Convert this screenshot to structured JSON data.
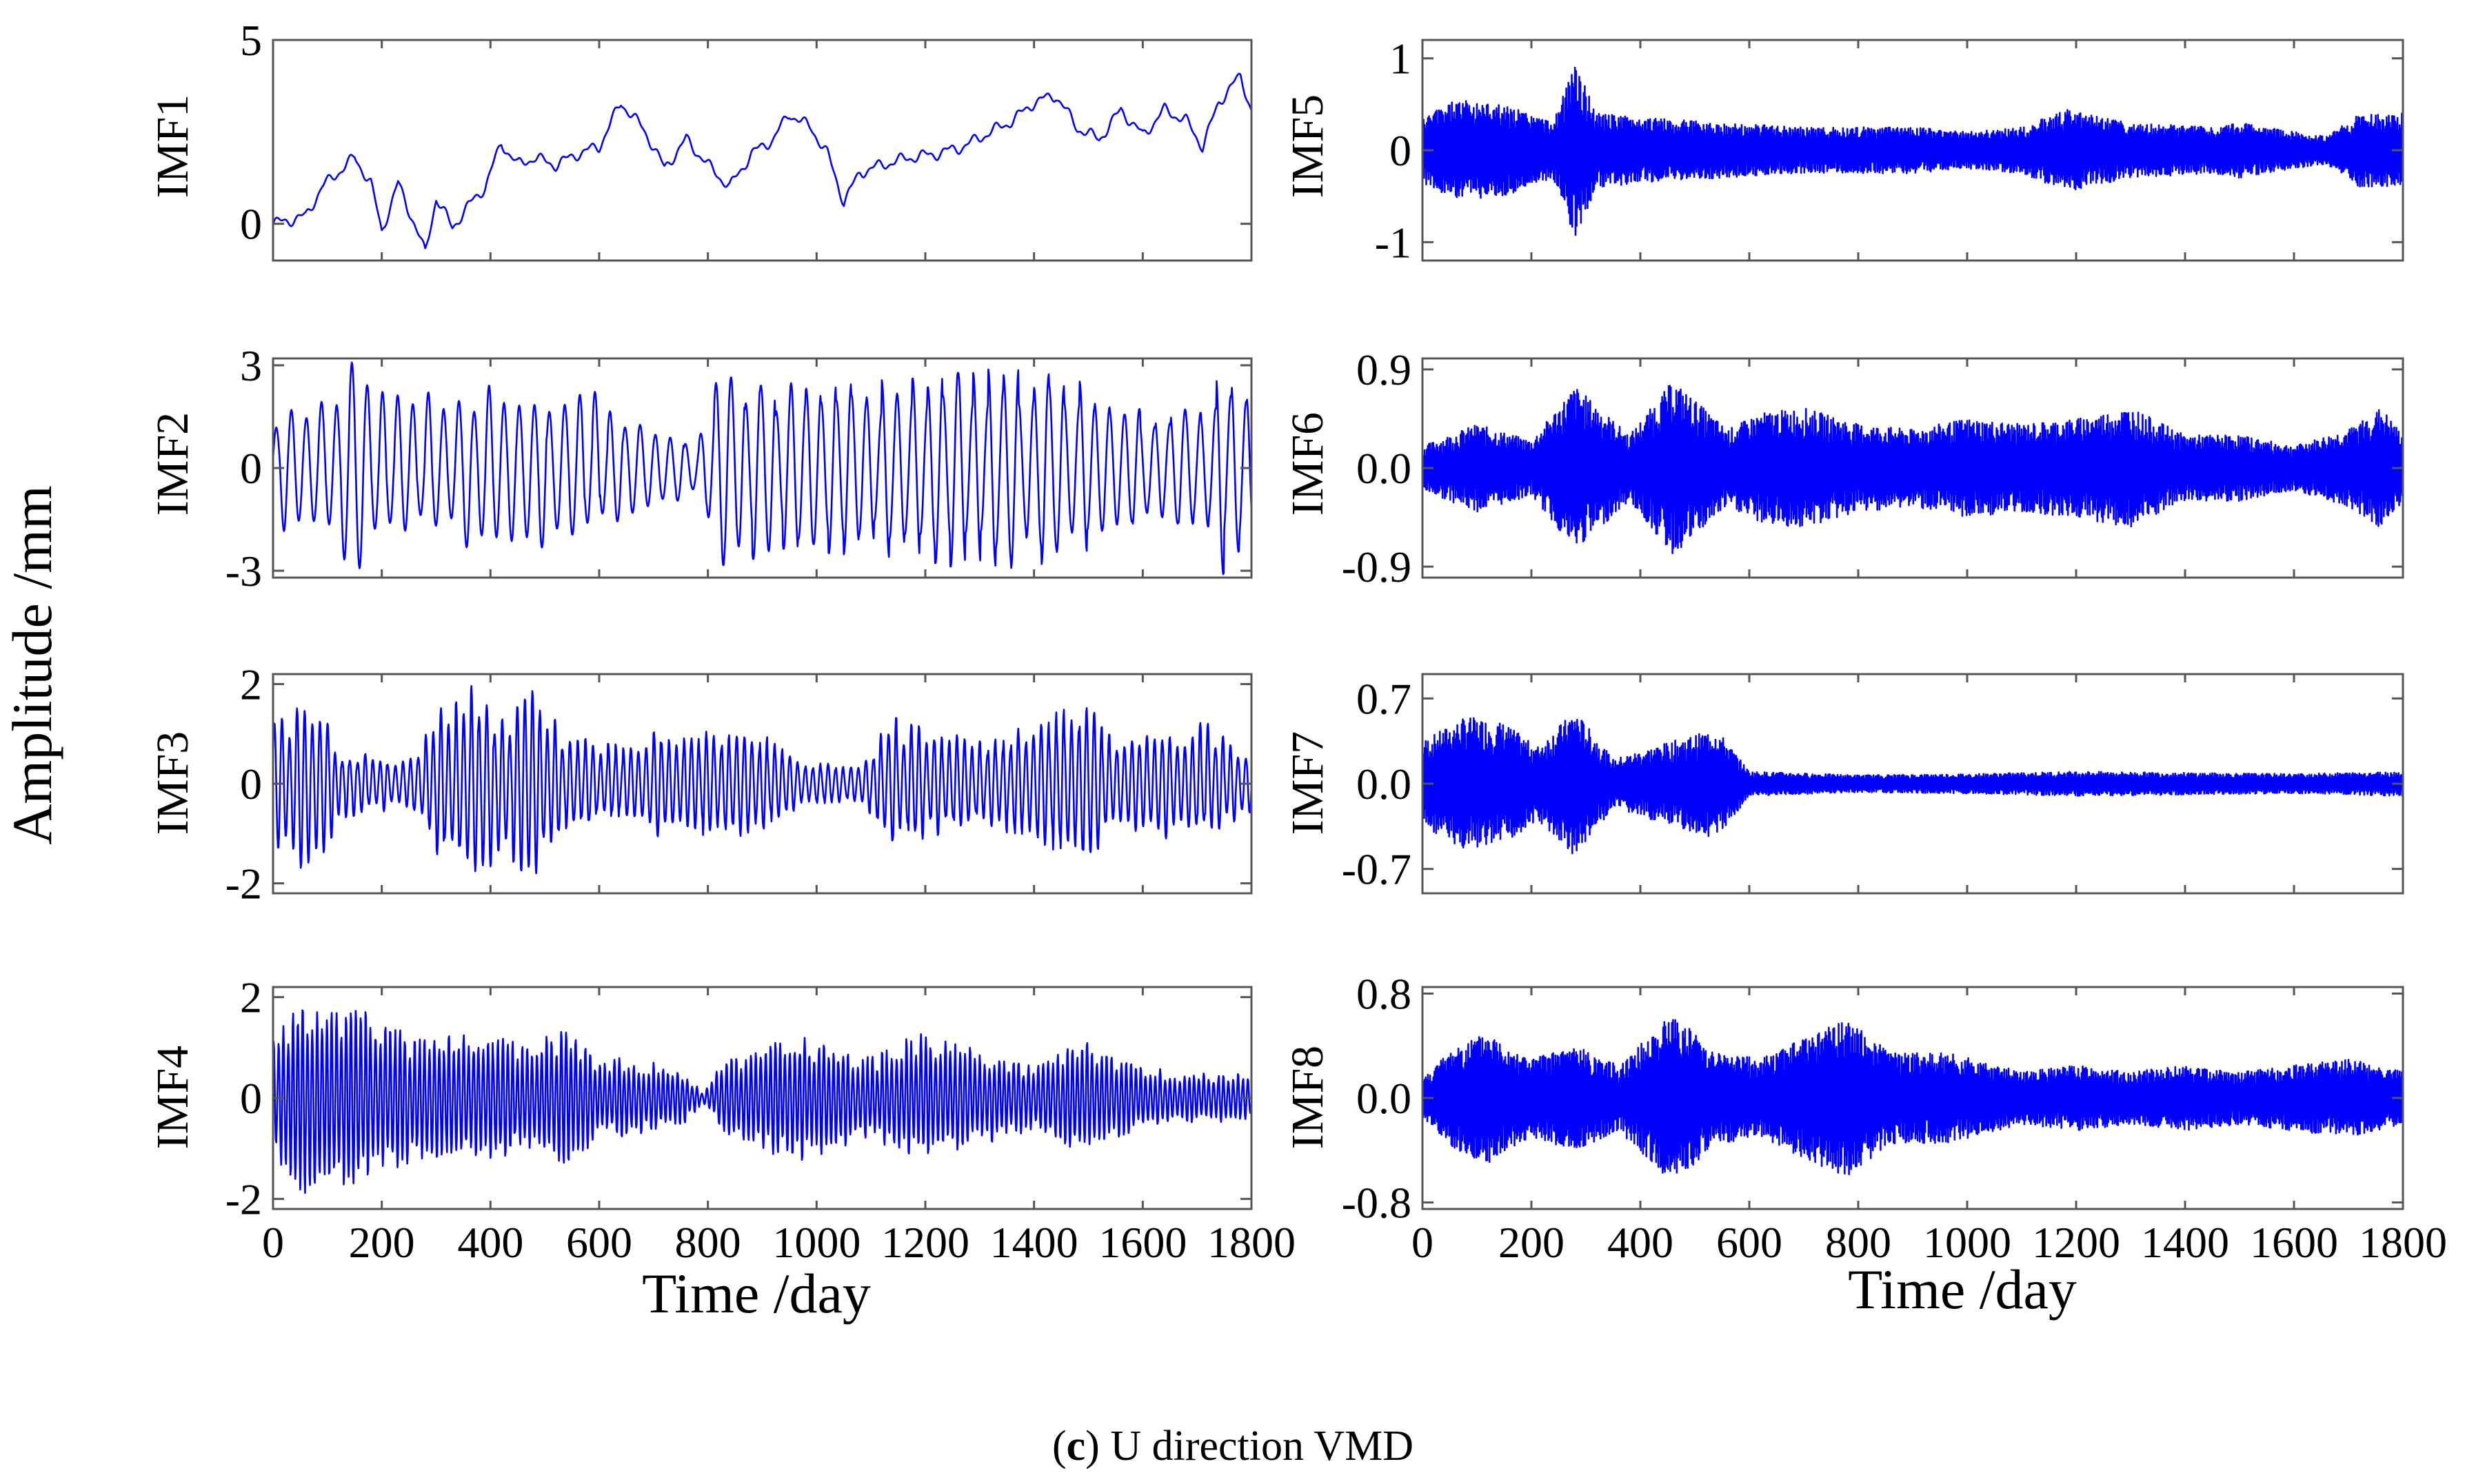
{
  "caption": {
    "prefix": "(",
    "letter": "c",
    "suffix": ") U direction VMD"
  },
  "shared_ylabel": "Amplitude /mm",
  "colors": {
    "series": "#0000ff",
    "frame": "#555555",
    "text": "#000000"
  },
  "chart_data": [
    {
      "type": "line",
      "name": "IMF1",
      "ylabel": "IMF1",
      "xlim": [
        0,
        1800
      ],
      "ylim": [
        -1,
        5
      ],
      "yticks": [
        0,
        5
      ],
      "ytick_labels": [
        "0",
        "5"
      ],
      "xticks": [],
      "xtick_labels": [],
      "xlabel": "",
      "color": "#0000ff",
      "signal": {
        "kind": "trend",
        "points": [
          [
            0,
            0.0
          ],
          [
            30,
            0.1
          ],
          [
            60,
            0.2
          ],
          [
            90,
            1.0
          ],
          [
            120,
            1.4
          ],
          [
            150,
            1.8
          ],
          [
            180,
            1.1
          ],
          [
            200,
            -0.2
          ],
          [
            230,
            1.1
          ],
          [
            260,
            0.0
          ],
          [
            280,
            -0.8
          ],
          [
            300,
            0.7
          ],
          [
            330,
            -0.1
          ],
          [
            360,
            0.5
          ],
          [
            390,
            1.0
          ],
          [
            420,
            2.2
          ],
          [
            450,
            1.6
          ],
          [
            480,
            1.8
          ],
          [
            520,
            1.6
          ],
          [
            560,
            1.9
          ],
          [
            600,
            2.1
          ],
          [
            640,
            3.3
          ],
          [
            680,
            2.6
          ],
          [
            700,
            2.1
          ],
          [
            720,
            1.5
          ],
          [
            760,
            2.3
          ],
          [
            800,
            1.6
          ],
          [
            840,
            1.0
          ],
          [
            880,
            1.9
          ],
          [
            920,
            2.3
          ],
          [
            950,
            3.0
          ],
          [
            990,
            2.6
          ],
          [
            1020,
            1.9
          ],
          [
            1050,
            0.6
          ],
          [
            1080,
            1.4
          ],
          [
            1120,
            1.6
          ],
          [
            1170,
            1.8
          ],
          [
            1220,
            1.9
          ],
          [
            1270,
            2.1
          ],
          [
            1320,
            2.5
          ],
          [
            1360,
            2.8
          ],
          [
            1400,
            3.3
          ],
          [
            1440,
            3.5
          ],
          [
            1480,
            2.6
          ],
          [
            1520,
            2.3
          ],
          [
            1560,
            3.1
          ],
          [
            1600,
            2.4
          ],
          [
            1640,
            3.1
          ],
          [
            1680,
            2.8
          ],
          [
            1710,
            2.1
          ],
          [
            1740,
            3.3
          ],
          [
            1760,
            3.7
          ],
          [
            1780,
            4.0
          ],
          [
            1800,
            3.1
          ]
        ]
      }
    },
    {
      "type": "line",
      "name": "IMF2",
      "ylabel": "IMF2",
      "xlim": [
        0,
        1800
      ],
      "ylim": [
        -3.2,
        3.2
      ],
      "yticks": [
        -3,
        0,
        3
      ],
      "ytick_labels": [
        "-3",
        "0",
        "3"
      ],
      "xticks": [],
      "xtick_labels": [],
      "xlabel": "",
      "color": "#0000ff",
      "signal": {
        "kind": "oscillation",
        "period": 28,
        "seed": 2,
        "env": [
          [
            0,
            1.4
          ],
          [
            80,
            2.0
          ],
          [
            150,
            2.6
          ],
          [
            250,
            1.8
          ],
          [
            400,
            2.0
          ],
          [
            600,
            1.8
          ],
          [
            700,
            1.0
          ],
          [
            780,
            0.8
          ],
          [
            820,
            2.6
          ],
          [
            900,
            2.2
          ],
          [
            1100,
            2.0
          ],
          [
            1200,
            2.5
          ],
          [
            1400,
            2.4
          ],
          [
            1600,
            1.6
          ],
          [
            1700,
            1.4
          ],
          [
            1760,
            2.8
          ],
          [
            1800,
            2.4
          ]
        ]
      }
    },
    {
      "type": "line",
      "name": "IMF3",
      "ylabel": "IMF3",
      "xlim": [
        0,
        1800
      ],
      "ylim": [
        -2.2,
        2.2
      ],
      "yticks": [
        -2,
        0,
        2
      ],
      "ytick_labels": [
        "-2",
        "0",
        "2"
      ],
      "xticks": [],
      "xtick_labels": [],
      "xlabel": "",
      "color": "#0000ff",
      "signal": {
        "kind": "oscillation",
        "period": 14,
        "seed": 3,
        "env": [
          [
            0,
            1.0
          ],
          [
            80,
            1.6
          ],
          [
            120,
            0.6
          ],
          [
            200,
            0.5
          ],
          [
            250,
            0.4
          ],
          [
            300,
            1.2
          ],
          [
            360,
            1.8
          ],
          [
            420,
            1.2
          ],
          [
            480,
            1.6
          ],
          [
            540,
            0.8
          ],
          [
            650,
            0.6
          ],
          [
            720,
            1.0
          ],
          [
            900,
            0.8
          ],
          [
            980,
            0.4
          ],
          [
            1080,
            0.3
          ],
          [
            1140,
            1.1
          ],
          [
            1200,
            0.9
          ],
          [
            1300,
            0.7
          ],
          [
            1400,
            1.0
          ],
          [
            1480,
            1.4
          ],
          [
            1560,
            0.8
          ],
          [
            1640,
            0.9
          ],
          [
            1720,
            1.0
          ],
          [
            1800,
            0.5
          ]
        ]
      }
    },
    {
      "type": "line",
      "name": "IMF4",
      "ylabel": "IMF4",
      "xlim": [
        0,
        1800
      ],
      "ylim": [
        -2.2,
        2.2
      ],
      "yticks": [
        -2,
        0,
        2
      ],
      "ytick_labels": [
        "-2",
        "0",
        "2"
      ],
      "xticks": [
        0,
        200,
        400,
        600,
        800,
        1000,
        1200,
        1400,
        1600,
        1800
      ],
      "xtick_labels": [
        "0",
        "200",
        "400",
        "600",
        "800",
        "1000",
        "1200",
        "1400",
        "1600",
        "1800"
      ],
      "xlabel": "Time /day",
      "color": "#0000ff",
      "signal": {
        "kind": "oscillation",
        "period": 9,
        "seed": 4,
        "env": [
          [
            0,
            1.0
          ],
          [
            40,
            1.6
          ],
          [
            100,
            1.4
          ],
          [
            170,
            1.5
          ],
          [
            260,
            1.0
          ],
          [
            300,
            1.1
          ],
          [
            380,
            1.0
          ],
          [
            460,
            0.9
          ],
          [
            540,
            1.1
          ],
          [
            600,
            0.7
          ],
          [
            700,
            0.6
          ],
          [
            760,
            0.4
          ],
          [
            790,
            0.1
          ],
          [
            830,
            0.6
          ],
          [
            950,
            1.1
          ],
          [
            1100,
            0.7
          ],
          [
            1200,
            1.1
          ],
          [
            1300,
            0.8
          ],
          [
            1400,
            0.5
          ],
          [
            1500,
            1.0
          ],
          [
            1600,
            0.5
          ],
          [
            1700,
            0.4
          ],
          [
            1800,
            0.4
          ]
        ]
      }
    },
    {
      "type": "line",
      "name": "IMF5",
      "ylabel": "IMF5",
      "xlim": [
        0,
        1800
      ],
      "ylim": [
        -1.2,
        1.2
      ],
      "yticks": [
        -1,
        0,
        1
      ],
      "ytick_labels": [
        "-1",
        "0",
        "1"
      ],
      "xticks": [],
      "xtick_labels": [],
      "xlabel": "",
      "color": "#0000ff",
      "signal": {
        "kind": "dense",
        "period": 2.2,
        "seed": 5,
        "env": [
          [
            0,
            0.35
          ],
          [
            60,
            0.55
          ],
          [
            150,
            0.5
          ],
          [
            240,
            0.3
          ],
          [
            280,
            0.95
          ],
          [
            320,
            0.4
          ],
          [
            420,
            0.35
          ],
          [
            550,
            0.3
          ],
          [
            700,
            0.25
          ],
          [
            800,
            0.25
          ],
          [
            900,
            0.25
          ],
          [
            1000,
            0.2
          ],
          [
            1100,
            0.25
          ],
          [
            1180,
            0.45
          ],
          [
            1300,
            0.3
          ],
          [
            1450,
            0.25
          ],
          [
            1500,
            0.3
          ],
          [
            1600,
            0.2
          ],
          [
            1660,
            0.15
          ],
          [
            1720,
            0.4
          ],
          [
            1800,
            0.4
          ]
        ]
      }
    },
    {
      "type": "line",
      "name": "IMF6",
      "ylabel": "IMF6",
      "xlim": [
        0,
        1800
      ],
      "ylim": [
        -1.0,
        1.0
      ],
      "yticks": [
        -0.9,
        0.0,
        0.9
      ],
      "ytick_labels": [
        "-0.9",
        "0.0",
        "0.9"
      ],
      "xticks": [],
      "xtick_labels": [],
      "xlabel": "",
      "color": "#0000ff",
      "signal": {
        "kind": "dense",
        "period": 2.2,
        "seed": 6,
        "env": [
          [
            0,
            0.2
          ],
          [
            100,
            0.4
          ],
          [
            200,
            0.25
          ],
          [
            280,
            0.75
          ],
          [
            380,
            0.3
          ],
          [
            460,
            0.8
          ],
          [
            560,
            0.35
          ],
          [
            620,
            0.5
          ],
          [
            700,
            0.55
          ],
          [
            800,
            0.4
          ],
          [
            900,
            0.35
          ],
          [
            1000,
            0.45
          ],
          [
            1100,
            0.4
          ],
          [
            1200,
            0.45
          ],
          [
            1300,
            0.55
          ],
          [
            1400,
            0.3
          ],
          [
            1500,
            0.3
          ],
          [
            1600,
            0.2
          ],
          [
            1700,
            0.35
          ],
          [
            1760,
            0.55
          ],
          [
            1800,
            0.3
          ]
        ]
      }
    },
    {
      "type": "line",
      "name": "IMF7",
      "ylabel": "IMF7",
      "xlim": [
        0,
        1800
      ],
      "ylim": [
        -0.9,
        0.9
      ],
      "yticks": [
        -0.7,
        0.0,
        0.7
      ],
      "ytick_labels": [
        "-0.7",
        "0.0",
        "0.7"
      ],
      "xticks": [],
      "xtick_labels": [],
      "xlabel": "",
      "color": "#0000ff",
      "signal": {
        "kind": "dense",
        "period": 2.2,
        "seed": 7,
        "env": [
          [
            0,
            0.35
          ],
          [
            80,
            0.55
          ],
          [
            150,
            0.5
          ],
          [
            210,
            0.3
          ],
          [
            280,
            0.6
          ],
          [
            350,
            0.2
          ],
          [
            460,
            0.35
          ],
          [
            540,
            0.45
          ],
          [
            600,
            0.1
          ],
          [
            800,
            0.07
          ],
          [
            1000,
            0.08
          ],
          [
            1200,
            0.1
          ],
          [
            1400,
            0.09
          ],
          [
            1600,
            0.08
          ],
          [
            1800,
            0.1
          ]
        ]
      }
    },
    {
      "type": "line",
      "name": "IMF8",
      "ylabel": "IMF8",
      "xlim": [
        0,
        1800
      ],
      "ylim": [
        -0.85,
        0.85
      ],
      "yticks": [
        -0.8,
        0.0,
        0.8
      ],
      "ytick_labels": [
        "-0.8",
        "0.0",
        "0.8"
      ],
      "xticks": [
        0,
        200,
        400,
        600,
        800,
        1000,
        1200,
        1400,
        1600,
        1800
      ],
      "xtick_labels": [
        "0",
        "200",
        "400",
        "600",
        "800",
        "1000",
        "1200",
        "1400",
        "1600",
        "1800"
      ],
      "xlabel": "Time /day",
      "color": "#0000ff",
      "signal": {
        "kind": "dense",
        "period": 2.2,
        "seed": 8,
        "env": [
          [
            0,
            0.15
          ],
          [
            60,
            0.4
          ],
          [
            120,
            0.5
          ],
          [
            200,
            0.3
          ],
          [
            280,
            0.4
          ],
          [
            360,
            0.25
          ],
          [
            460,
            0.65
          ],
          [
            540,
            0.35
          ],
          [
            620,
            0.3
          ],
          [
            720,
            0.5
          ],
          [
            780,
            0.6
          ],
          [
            860,
            0.35
          ],
          [
            960,
            0.35
          ],
          [
            1100,
            0.2
          ],
          [
            1200,
            0.25
          ],
          [
            1300,
            0.2
          ],
          [
            1400,
            0.25
          ],
          [
            1500,
            0.2
          ],
          [
            1600,
            0.25
          ],
          [
            1700,
            0.3
          ],
          [
            1800,
            0.2
          ]
        ]
      }
    }
  ]
}
